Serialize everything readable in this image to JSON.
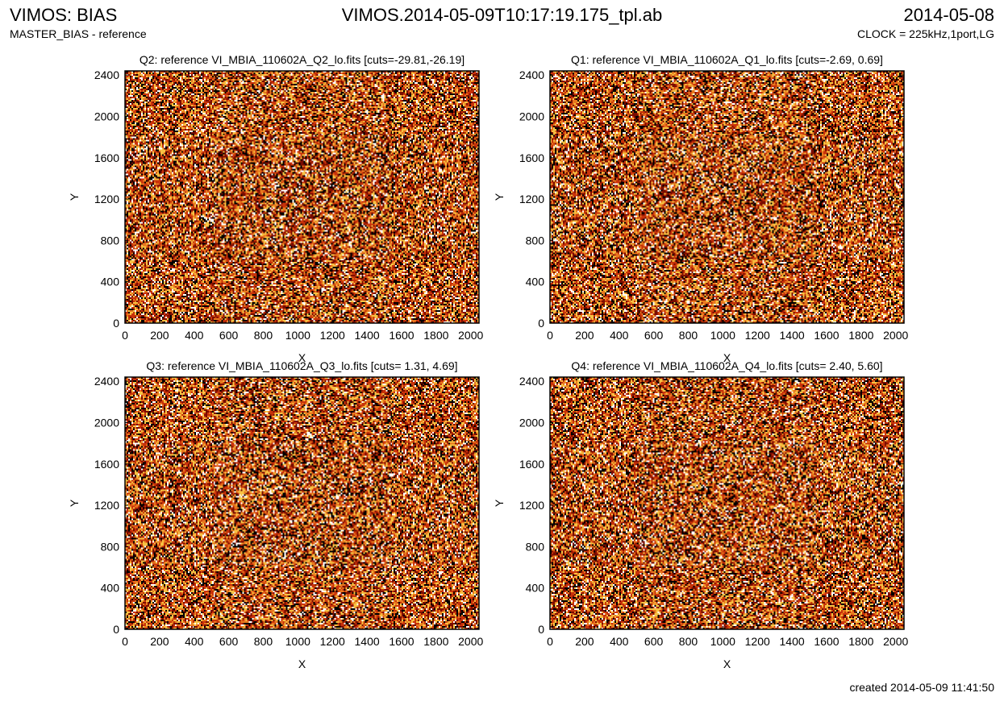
{
  "header": {
    "title_left": "VIMOS: BIAS",
    "subtitle_left": "MASTER_BIAS - reference",
    "title_center": "VIMOS.2014-05-09T10:17:19.175_tpl.ab",
    "title_right": "2014-05-08",
    "subtitle_right": "CLOCK = 225kHz,1port,LG"
  },
  "footer": {
    "created": "created 2014-05-09 11:41:50"
  },
  "colors": {
    "colormap": [
      "#000000",
      "#7a0c00",
      "#c8320a",
      "#e8781e",
      "#f7c243",
      "#ffffff"
    ]
  },
  "chart_data": [
    {
      "type": "heatmap",
      "title": "Q2: reference VI_MBIA_110602A_Q2_lo.fits [cuts=-29.81,-26.19]",
      "xlabel": "X",
      "ylabel": "Y",
      "xlim": [
        0,
        2048
      ],
      "ylim": [
        0,
        2440
      ],
      "xticks": [
        "0",
        "200",
        "400",
        "600",
        "800",
        "1000",
        "1200",
        "1400",
        "1600",
        "1800",
        "2000"
      ],
      "yticks": [
        "0",
        "400",
        "800",
        "1200",
        "1600",
        "2000",
        "2400"
      ],
      "cuts": [
        -29.81,
        -26.19
      ]
    },
    {
      "type": "heatmap",
      "title": "Q1: reference VI_MBIA_110602A_Q1_lo.fits [cuts=-2.69, 0.69]",
      "xlabel": "X",
      "ylabel": "Y",
      "xlim": [
        0,
        2048
      ],
      "ylim": [
        0,
        2440
      ],
      "xticks": [
        "0",
        "200",
        "400",
        "600",
        "800",
        "1000",
        "1200",
        "1400",
        "1600",
        "1800",
        "2000"
      ],
      "yticks": [
        "0",
        "400",
        "800",
        "1200",
        "1600",
        "2000",
        "2400"
      ],
      "cuts": [
        -2.69,
        0.69
      ]
    },
    {
      "type": "heatmap",
      "title": "Q3: reference VI_MBIA_110602A_Q3_lo.fits [cuts= 1.31, 4.69]",
      "xlabel": "X",
      "ylabel": "Y",
      "xlim": [
        0,
        2048
      ],
      "ylim": [
        0,
        2440
      ],
      "xticks": [
        "0",
        "200",
        "400",
        "600",
        "800",
        "1000",
        "1200",
        "1400",
        "1600",
        "1800",
        "2000"
      ],
      "yticks": [
        "0",
        "400",
        "800",
        "1200",
        "1600",
        "2000",
        "2400"
      ],
      "cuts": [
        1.31,
        4.69
      ]
    },
    {
      "type": "heatmap",
      "title": "Q4: reference VI_MBIA_110602A_Q4_lo.fits [cuts= 2.40, 5.60]",
      "xlabel": "X",
      "ylabel": "Y",
      "xlim": [
        0,
        2048
      ],
      "ylim": [
        0,
        2440
      ],
      "xticks": [
        "0",
        "200",
        "400",
        "600",
        "800",
        "1000",
        "1200",
        "1400",
        "1600",
        "1800",
        "2000"
      ],
      "yticks": [
        "0",
        "400",
        "800",
        "1200",
        "1600",
        "2000",
        "2400"
      ],
      "cuts": [
        2.4,
        5.6
      ]
    }
  ]
}
